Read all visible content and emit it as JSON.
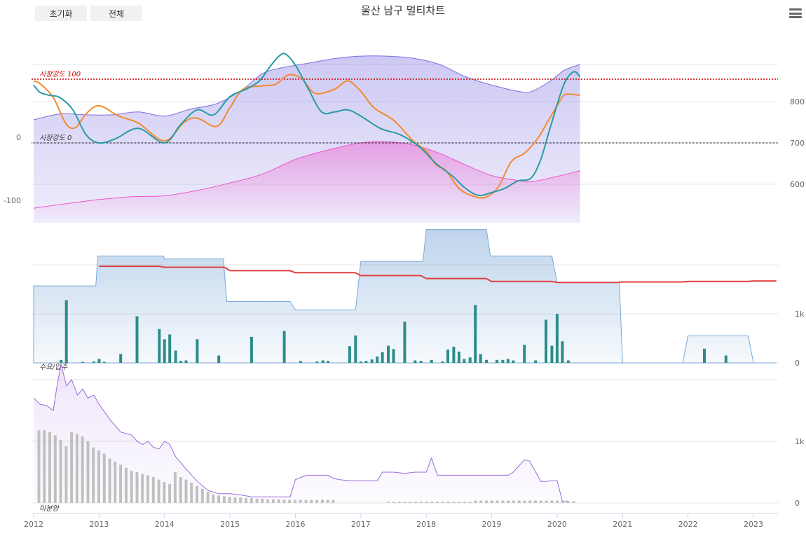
{
  "toolbar": {
    "reset_label": "초기화",
    "all_label": "전체",
    "menu_icon": "hamburger-menu-icon"
  },
  "chart_data": {
    "type": "multi-panel",
    "title": "울산 남구 멀티차트",
    "xaxis": {
      "ticks": [
        "2012",
        "2013",
        "2014",
        "2015",
        "2016",
        "2017",
        "2018",
        "2019",
        "2020",
        "2021",
        "2022",
        "2023"
      ],
      "range": [
        2012,
        2023.4
      ]
    },
    "panels": [
      {
        "name": "market",
        "type": "line",
        "left_axis": {
          "ticks": [
            0,
            -100
          ]
        },
        "right_axis": {
          "ticks": [
            800,
            700,
            600
          ]
        },
        "plot_lines": [
          {
            "label": "시장강도 100",
            "value": 100,
            "color": "#cc0000"
          },
          {
            "label": "시장강도 0",
            "value": 0,
            "color": "#000000"
          }
        ],
        "colors": {
          "upper_band": "#7b6fe0",
          "lower_band": "#ee55cc",
          "orange": "#f28a2e",
          "teal": "#2a9aa2"
        },
        "series": [
          {
            "key": "upper_band",
            "x": [
              2012.0,
              2012.4,
              2012.8,
              2013.2,
              2013.6,
              2014.0,
              2014.4,
              2014.8,
              2015.2,
              2015.5,
              2015.8,
              2016.2,
              2016.6,
              2017.0,
              2017.4,
              2017.8,
              2018.2,
              2018.6,
              2019.0,
              2019.4,
              2019.6,
              2019.9,
              2020.1,
              2020.35
            ],
            "y": [
              756,
              770,
              768,
              768,
              775,
              765,
              782,
              795,
              830,
              868,
              882,
              893,
              904,
              910,
              910,
              905,
              890,
              860,
              840,
              825,
              824,
              850,
              875,
              890
            ]
          },
          {
            "key": "lower_band",
            "x": [
              2012.0,
              2012.5,
              2013.0,
              2013.5,
              2014.0,
              2014.5,
              2015.0,
              2015.5,
              2016.0,
              2016.5,
              2017.0,
              2017.4,
              2017.8,
              2018.2,
              2018.6,
              2019.0,
              2019.4,
              2019.6,
              2020.0,
              2020.35
            ],
            "y": [
              542,
              553,
              563,
              570,
              572,
              585,
              603,
              625,
              660,
              683,
              700,
              703,
              695,
              675,
              647,
              621,
              609,
              606,
              619,
              633
            ]
          },
          {
            "key": "orange",
            "x": [
              2012.0,
              2012.1,
              2012.3,
              2012.5,
              2012.65,
              2012.8,
              2013.0,
              2013.3,
              2013.6,
              2014.0,
              2014.3,
              2014.5,
              2014.8,
              2015.0,
              2015.2,
              2015.5,
              2015.7,
              2015.9,
              2016.1,
              2016.3,
              2016.6,
              2016.8,
              2017.0,
              2017.2,
              2017.5,
              2017.8,
              2018.0,
              2018.15,
              2018.3,
              2018.5,
              2018.7,
              2018.9,
              2019.1,
              2019.3,
              2019.5,
              2019.7,
              2019.85,
              2020.0,
              2020.1,
              2020.2,
              2020.35
            ],
            "y": [
              850,
              843,
              810,
              745,
              738,
              770,
              790,
              765,
              748,
              705,
              750,
              760,
              740,
              785,
              830,
              838,
              842,
              865,
              855,
              820,
              830,
              850,
              825,
              785,
              755,
              705,
              680,
              647,
              633,
              590,
              572,
              568,
              593,
              655,
              675,
              710,
              750,
              790,
              815,
              818,
              815
            ]
          },
          {
            "key": "teal",
            "x": [
              2012.0,
              2012.1,
              2012.25,
              2012.4,
              2012.6,
              2012.8,
              2013.0,
              2013.25,
              2013.6,
              2014.0,
              2014.25,
              2014.5,
              2014.75,
              2015.0,
              2015.25,
              2015.45,
              2015.6,
              2015.75,
              2015.85,
              2016.0,
              2016.2,
              2016.4,
              2016.6,
              2016.8,
              2017.0,
              2017.3,
              2017.6,
              2017.9,
              2018.15,
              2018.4,
              2018.6,
              2018.8,
              2019.0,
              2019.2,
              2019.4,
              2019.6,
              2019.75,
              2019.9,
              2020.1,
              2020.25,
              2020.35
            ],
            "y": [
              840,
              822,
              815,
              810,
              780,
              720,
              700,
              710,
              735,
              700,
              745,
              780,
              768,
              812,
              830,
              850,
              882,
              910,
              915,
              888,
              830,
              775,
              775,
              780,
              765,
              735,
              720,
              690,
              650,
              620,
              590,
              573,
              580,
              590,
              608,
              615,
              660,
              740,
              840,
              872,
              860
            ]
          }
        ]
      },
      {
        "name": "supply",
        "type": "bar+area+line",
        "label": "수요/입주",
        "right_axis": {
          "ticks": [
            "1k",
            "0"
          ]
        },
        "colors": {
          "area": "#7aa7d6",
          "line": "#e04040",
          "bars": "#2a8d8a"
        },
        "area_steps": [
          [
            2012.0,
            1.57
          ],
          [
            2012.95,
            1.57
          ],
          [
            2012.98,
            2.18
          ],
          [
            2013.98,
            2.18
          ],
          [
            2014.0,
            2.12
          ],
          [
            2014.9,
            2.12
          ],
          [
            2014.95,
            1.25
          ],
          [
            2015.92,
            1.25
          ],
          [
            2016.0,
            1.08
          ],
          [
            2016.92,
            1.08
          ],
          [
            2017.0,
            2.07
          ],
          [
            2017.95,
            2.07
          ],
          [
            2018.0,
            2.72
          ],
          [
            2018.92,
            2.72
          ],
          [
            2018.98,
            2.18
          ],
          [
            2019.92,
            2.18
          ],
          [
            2020.0,
            1.64
          ],
          [
            2020.95,
            1.64
          ],
          [
            2021.0,
            0
          ],
          [
            2021.92,
            0
          ],
          [
            2022.0,
            0.55
          ],
          [
            2022.92,
            0.55
          ],
          [
            2023.0,
            0
          ],
          [
            2023.35,
            0
          ]
        ],
        "line_steps": [
          [
            2013.0,
            1.97
          ],
          [
            2014.0,
            1.95
          ],
          [
            2015.0,
            1.88
          ],
          [
            2016.0,
            1.84
          ],
          [
            2017.0,
            1.78
          ],
          [
            2018.0,
            1.72
          ],
          [
            2019.0,
            1.66
          ],
          [
            2020.0,
            1.64
          ],
          [
            2021.0,
            1.65
          ],
          [
            2022.0,
            1.66
          ],
          [
            2023.0,
            1.67
          ],
          [
            2023.35,
            1.67
          ]
        ],
        "bars": {
          "x": [
            2012.42,
            2012.5,
            2012.75,
            2012.92,
            2013.0,
            2013.08,
            2013.33,
            2013.58,
            2013.92,
            2014.0,
            2014.08,
            2014.17,
            2014.25,
            2014.33,
            2014.5,
            2014.83,
            2015.33,
            2015.83,
            2016.08,
            2016.33,
            2016.42,
            2016.5,
            2016.83,
            2016.92,
            2017.0,
            2017.08,
            2017.17,
            2017.25,
            2017.33,
            2017.42,
            2017.5,
            2017.67,
            2017.83,
            2017.92,
            2018.08,
            2018.25,
            2018.33,
            2018.42,
            2018.5,
            2018.58,
            2018.67,
            2018.75,
            2018.83,
            2018.92,
            2019.08,
            2019.17,
            2019.25,
            2019.33,
            2019.5,
            2019.67,
            2019.83,
            2019.92,
            2020.0,
            2020.08,
            2020.17,
            2022.25,
            2022.58
          ],
          "y": [
            0.06,
            1.28,
            0.02,
            0.03,
            0.08,
            0.02,
            0.18,
            0.95,
            0.69,
            0.48,
            0.58,
            0.25,
            0.04,
            0.05,
            0.48,
            0.15,
            0.53,
            0.65,
            0.04,
            0.03,
            0.05,
            0.04,
            0.34,
            0.56,
            0.03,
            0.04,
            0.07,
            0.13,
            0.22,
            0.35,
            0.28,
            0.84,
            0.05,
            0.04,
            0.06,
            0.03,
            0.27,
            0.33,
            0.23,
            0.08,
            0.11,
            1.18,
            0.18,
            0.06,
            0.06,
            0.06,
            0.08,
            0.05,
            0.37,
            0.05,
            0.88,
            0.35,
            1.0,
            0.44,
            0.05,
            0.29,
            0.15
          ]
        }
      },
      {
        "name": "unsold",
        "type": "bar+area",
        "label": "미분양",
        "right_axis": {
          "ticks": [
            "1k",
            "0"
          ]
        },
        "colors": {
          "area": "#9a6ad8",
          "bars": "#c0c0c0"
        },
        "area_line": {
          "x": [
            2012.0,
            2012.1,
            2012.2,
            2012.3,
            2012.35,
            2012.42,
            2012.5,
            2012.58,
            2012.67,
            2012.75,
            2012.83,
            2012.92,
            2013.0,
            2013.17,
            2013.33,
            2013.5,
            2013.58,
            2013.67,
            2013.75,
            2013.83,
            2013.92,
            2014.0,
            2014.08,
            2014.17,
            2014.33,
            2014.5,
            2014.67,
            2014.83,
            2015.0,
            2015.17,
            2015.33,
            2015.42,
            2015.58,
            2015.75,
            2015.83,
            2015.92,
            2016.0,
            2016.17,
            2016.33,
            2016.5,
            2016.58,
            2016.67,
            2016.83,
            2017.0,
            2017.25,
            2017.33,
            2017.5,
            2017.67,
            2017.83,
            2018.0,
            2018.08,
            2018.17,
            2018.25,
            2018.5,
            2018.75,
            2019.0,
            2019.25,
            2019.33,
            2019.5,
            2019.58,
            2019.75,
            2019.83,
            2019.92,
            2020.0,
            2020.08,
            2020.17
          ],
          "y": [
            1.7,
            1.6,
            1.58,
            1.5,
            1.85,
            2.25,
            1.9,
            2.0,
            1.75,
            1.85,
            1.7,
            1.75,
            1.6,
            1.35,
            1.15,
            1.1,
            1.0,
            0.95,
            1.0,
            0.9,
            0.88,
            1.0,
            0.95,
            0.75,
            0.55,
            0.35,
            0.2,
            0.15,
            0.15,
            0.13,
            0.1,
            0.1,
            0.1,
            0.1,
            0.1,
            0.1,
            0.38,
            0.45,
            0.45,
            0.45,
            0.4,
            0.38,
            0.36,
            0.36,
            0.36,
            0.5,
            0.5,
            0.48,
            0.5,
            0.5,
            0.73,
            0.45,
            0.45,
            0.45,
            0.45,
            0.45,
            0.45,
            0.5,
            0.7,
            0.68,
            0.35,
            0.35,
            0.36,
            0.36,
            0.03,
            0.03
          ]
        },
        "bars": {
          "x_start": 2012.08,
          "x_step": 0.0833,
          "y": [
            1.18,
            1.18,
            1.15,
            1.1,
            1.02,
            0.92,
            1.15,
            1.12,
            1.08,
            1.0,
            0.9,
            0.85,
            0.8,
            0.72,
            0.67,
            0.62,
            0.57,
            0.52,
            0.5,
            0.47,
            0.45,
            0.42,
            0.38,
            0.34,
            0.31,
            0.5,
            0.42,
            0.38,
            0.33,
            0.28,
            0.23,
            0.18,
            0.14,
            0.12,
            0.11,
            0.1,
            0.09,
            0.09,
            0.08,
            0.08,
            0.07,
            0.07,
            0.06,
            0.06,
            0.06,
            0.05,
            0.05,
            0.05,
            0.05,
            0.05,
            0.05,
            0.05,
            0.05,
            0.05,
            0.05
          ],
          "x2_start": 2017.42,
          "x2_step": 0.0833,
          "y2": [
            0.02,
            0.02,
            0.02,
            0.02,
            0.02,
            0.02,
            0.02,
            0.02,
            0.02,
            0.02,
            0.02,
            0.02,
            0.02,
            0.02,
            0.02,
            0.02,
            0.04,
            0.04,
            0.04,
            0.04,
            0.04,
            0.04,
            0.04,
            0.04,
            0.04,
            0.04,
            0.04,
            0.04,
            0.04,
            0.04,
            0.04,
            0.04,
            0.04,
            0.03,
            0.03
          ]
        }
      }
    ]
  }
}
